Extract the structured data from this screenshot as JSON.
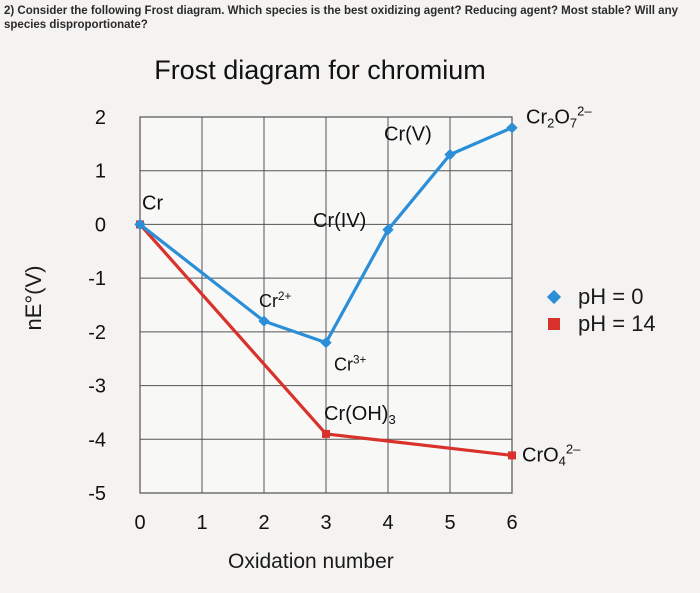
{
  "question": "2) Consider the following Frost diagram. Which species is the best oxidizing agent? Reducing agent? Most stable? Will any species disproportionate?",
  "chart_data": {
    "type": "line",
    "title": "Frost diagram for chromium",
    "xlabel": "Oxidation number",
    "ylabel": "nE°(V)",
    "xlim": [
      0,
      6
    ],
    "ylim": [
      -5,
      2
    ],
    "x_ticks": [
      "0",
      "1",
      "2",
      "3",
      "4",
      "5",
      "6"
    ],
    "y_ticks": [
      "2",
      "1",
      "0",
      "-1",
      "-2",
      "-3",
      "-4",
      "-5"
    ],
    "grid": true,
    "legend_position": "right",
    "series": [
      {
        "name": "pH = 0",
        "color": "#2b8fd8",
        "marker": "diamond",
        "points": [
          {
            "x": 0,
            "y": 0,
            "label": "Cr"
          },
          {
            "x": 2,
            "y": -1.8,
            "label": "Cr2+"
          },
          {
            "x": 3,
            "y": -2.2,
            "label": "Cr3+"
          },
          {
            "x": 4,
            "y": -0.1,
            "label": "Cr(IV)"
          },
          {
            "x": 5,
            "y": 1.3,
            "label": "Cr(V)"
          },
          {
            "x": 6,
            "y": 1.8,
            "label": "Cr2O72-"
          }
        ]
      },
      {
        "name": "pH = 14",
        "color": "#d9312b",
        "marker": "square",
        "points": [
          {
            "x": 0,
            "y": 0,
            "label": "Cr"
          },
          {
            "x": 3,
            "y": -3.9,
            "label": "Cr(OH)3"
          },
          {
            "x": 6,
            "y": -4.3,
            "label": "CrO42-"
          }
        ]
      }
    ]
  }
}
